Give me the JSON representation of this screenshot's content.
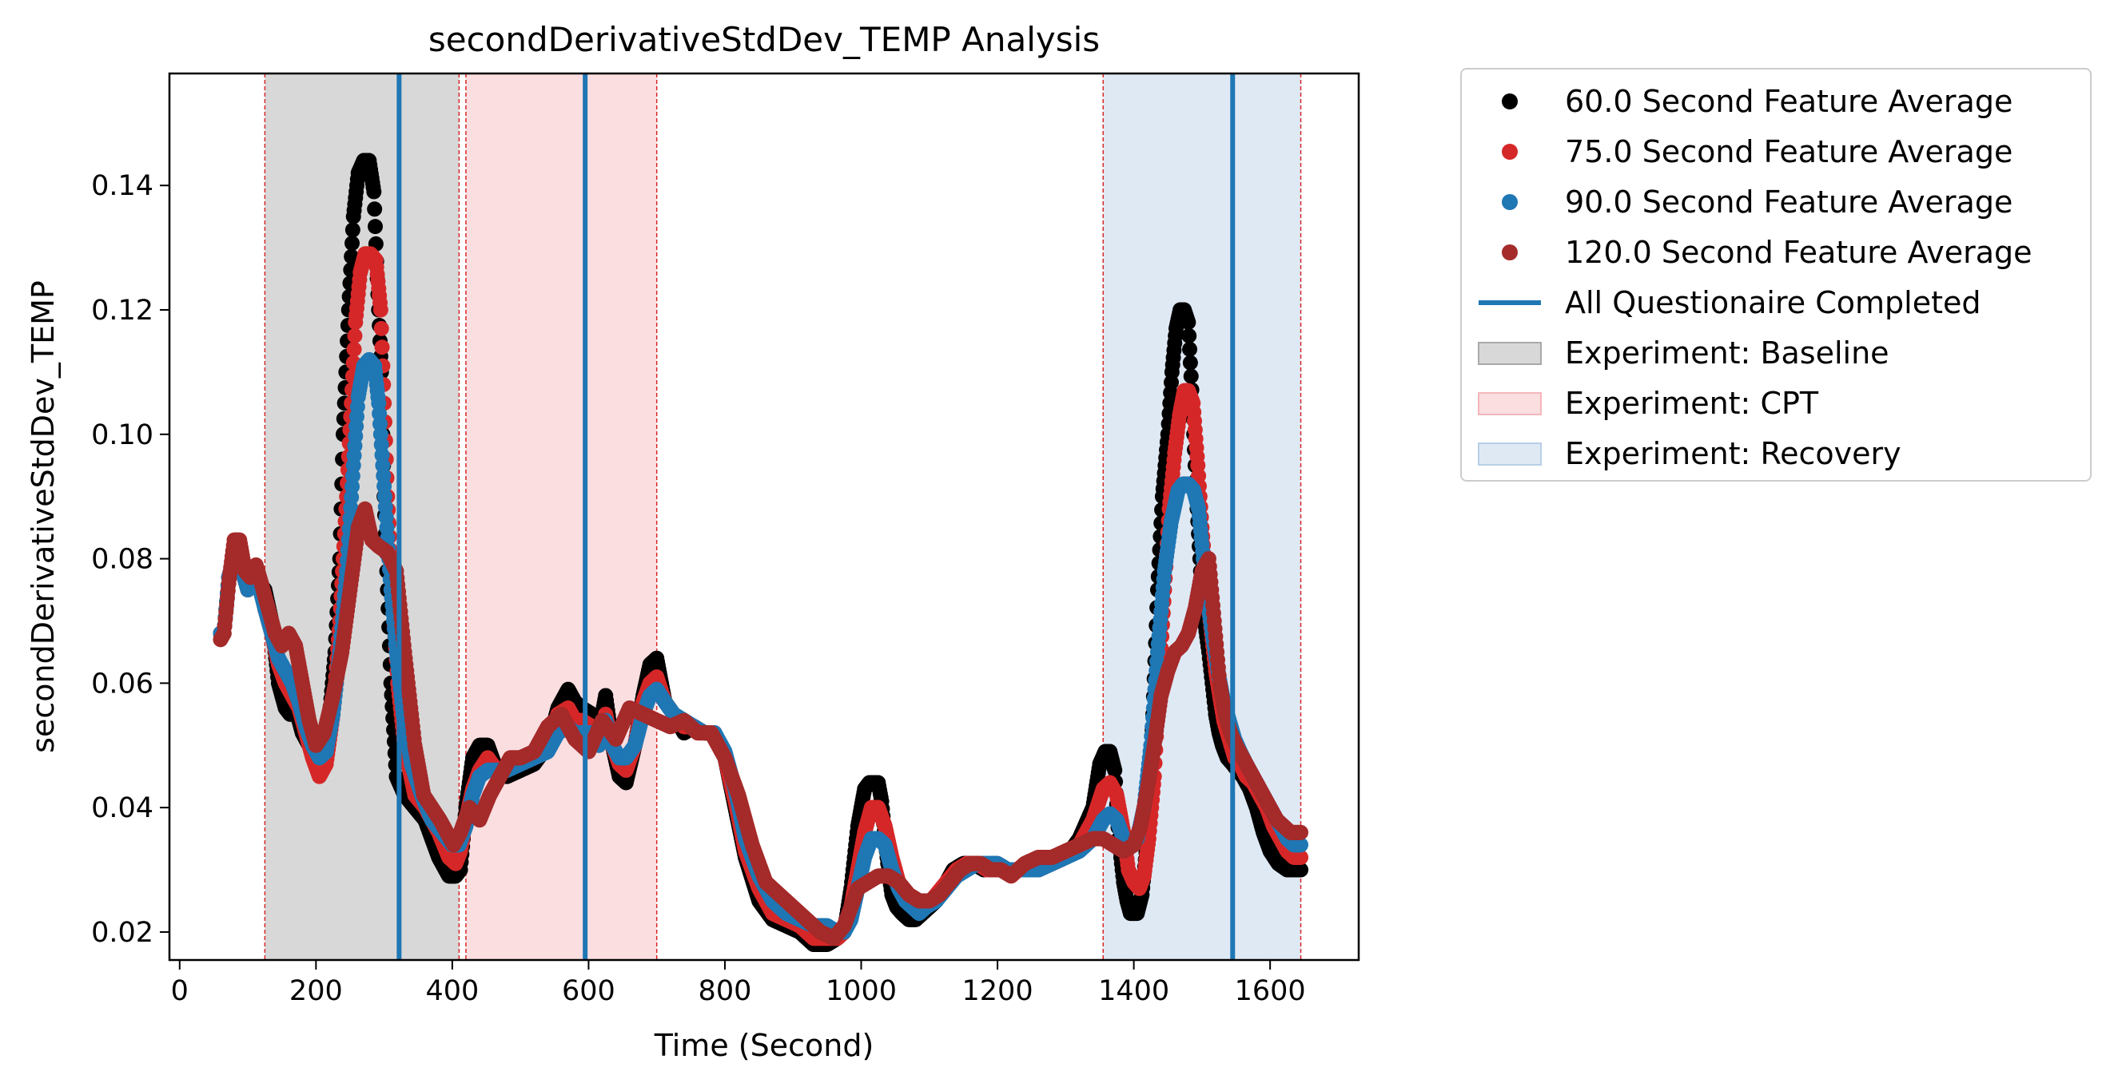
{
  "chart_data": {
    "type": "scatter",
    "title": "secondDerivativeStdDev_TEMP Analysis",
    "xlabel": "Time (Second)",
    "ylabel": "secondDerivativeStdDev_TEMP",
    "xlim": [
      -15,
      1730
    ],
    "ylim": [
      0.0155,
      0.158
    ],
    "xticks": [
      0,
      200,
      400,
      600,
      800,
      1000,
      1200,
      1400,
      1600
    ],
    "yticks": [
      0.02,
      0.04,
      0.06,
      0.08,
      0.1,
      0.12,
      0.14
    ],
    "ytick_labels": [
      "0.02",
      "0.04",
      "0.06",
      "0.08",
      "0.10",
      "0.12",
      "0.14"
    ],
    "grid": false,
    "legend_placement": "outside upper right",
    "bands": [
      {
        "name": "Experiment: Baseline",
        "x0": 125,
        "x1": 410,
        "color": "#a9a9a9"
      },
      {
        "name": "Experiment: CPT",
        "x0": 420,
        "x1": 700,
        "color": "#f4b6bb"
      },
      {
        "name": "Experiment: Recovery",
        "x0": 1355,
        "x1": 1645,
        "color": "#b8cfe6"
      }
    ],
    "band_edge_color": "#d62728",
    "completion_lines": {
      "name": "All Questionaire Completed",
      "x": [
        322,
        595,
        1545
      ],
      "color": "#1f77b4"
    },
    "series": [
      {
        "name": "60.0 Second Feature Average",
        "color": "#000000",
        "x": [
          60,
          65,
          72,
          82,
          92,
          100,
          110,
          118,
          125,
          135,
          145,
          155,
          162,
          170,
          180,
          190,
          200,
          210,
          220,
          228,
          235,
          240,
          248,
          255,
          262,
          270,
          278,
          285,
          290,
          296,
          300,
          305,
          310,
          318,
          330,
          345,
          360,
          380,
          395,
          405,
          412,
          420,
          430,
          440,
          452,
          465,
          480,
          500,
          520,
          540,
          555,
          570,
          580,
          590,
          605,
          615,
          625,
          635,
          645,
          655,
          668,
          680,
          690,
          700,
          712,
          725,
          740,
          755,
          770,
          785,
          800,
          815,
          830,
          850,
          870,
          890,
          910,
          930,
          950,
          965,
          975,
          985,
          995,
          1005,
          1012,
          1018,
          1025,
          1030,
          1035,
          1040,
          1045,
          1052,
          1060,
          1070,
          1080,
          1090,
          1100,
          1110,
          1120,
          1135,
          1150,
          1165,
          1180,
          1195,
          1210,
          1225,
          1240,
          1260,
          1280,
          1300,
          1320,
          1340,
          1350,
          1358,
          1365,
          1372,
          1378,
          1385,
          1390,
          1395,
          1400,
          1405,
          1412,
          1420,
          1428,
          1435,
          1442,
          1450,
          1456,
          1462,
          1468,
          1474,
          1480,
          1486,
          1492,
          1498,
          1504,
          1510,
          1515,
          1520,
          1525,
          1530,
          1537,
          1545,
          1552,
          1560,
          1570,
          1580,
          1590,
          1600,
          1612,
          1625,
          1635,
          1645
        ],
        "values": [
          0.068,
          0.068,
          0.077,
          0.081,
          0.078,
          0.075,
          0.078,
          0.076,
          0.075,
          0.07,
          0.06,
          0.056,
          0.055,
          0.056,
          0.052,
          0.05,
          0.048,
          0.05,
          0.055,
          0.065,
          0.08,
          0.1,
          0.12,
          0.135,
          0.142,
          0.144,
          0.144,
          0.139,
          0.125,
          0.11,
          0.09,
          0.075,
          0.06,
          0.045,
          0.042,
          0.04,
          0.038,
          0.032,
          0.029,
          0.029,
          0.03,
          0.04,
          0.048,
          0.05,
          0.05,
          0.046,
          0.045,
          0.046,
          0.047,
          0.05,
          0.056,
          0.059,
          0.057,
          0.056,
          0.055,
          0.052,
          0.058,
          0.05,
          0.045,
          0.044,
          0.05,
          0.058,
          0.063,
          0.064,
          0.057,
          0.055,
          0.052,
          0.053,
          0.052,
          0.052,
          0.048,
          0.04,
          0.032,
          0.025,
          0.022,
          0.021,
          0.02,
          0.018,
          0.018,
          0.019,
          0.02,
          0.027,
          0.037,
          0.043,
          0.044,
          0.044,
          0.044,
          0.041,
          0.035,
          0.03,
          0.026,
          0.024,
          0.023,
          0.022,
          0.022,
          0.023,
          0.024,
          0.025,
          0.027,
          0.03,
          0.031,
          0.031,
          0.03,
          0.031,
          0.03,
          0.03,
          0.03,
          0.03,
          0.031,
          0.032,
          0.035,
          0.04,
          0.047,
          0.049,
          0.049,
          0.046,
          0.035,
          0.028,
          0.025,
          0.023,
          0.023,
          0.023,
          0.026,
          0.035,
          0.055,
          0.075,
          0.09,
          0.1,
          0.11,
          0.117,
          0.12,
          0.12,
          0.118,
          0.105,
          0.09,
          0.078,
          0.07,
          0.065,
          0.06,
          0.055,
          0.052,
          0.05,
          0.048,
          0.047,
          0.046,
          0.045,
          0.043,
          0.04,
          0.036,
          0.033,
          0.031,
          0.03,
          0.03,
          0.03
        ]
      },
      {
        "name": "75.0 Second Feature Average",
        "color": "#d62728",
        "x": [
          60,
          65,
          72,
          82,
          92,
          100,
          110,
          118,
          125,
          135,
          145,
          155,
          165,
          175,
          185,
          195,
          205,
          215,
          225,
          235,
          245,
          252,
          258,
          265,
          272,
          280,
          288,
          295,
          300,
          305,
          312,
          320,
          330,
          345,
          360,
          380,
          395,
          405,
          412,
          420,
          430,
          440,
          452,
          465,
          480,
          500,
          520,
          540,
          555,
          570,
          580,
          590,
          605,
          615,
          625,
          635,
          645,
          655,
          668,
          680,
          690,
          700,
          712,
          725,
          740,
          755,
          770,
          785,
          800,
          815,
          830,
          850,
          870,
          890,
          910,
          930,
          950,
          965,
          975,
          985,
          995,
          1005,
          1015,
          1025,
          1035,
          1045,
          1055,
          1065,
          1075,
          1085,
          1095,
          1110,
          1125,
          1140,
          1155,
          1170,
          1185,
          1200,
          1215,
          1230,
          1245,
          1260,
          1280,
          1300,
          1320,
          1340,
          1355,
          1365,
          1375,
          1385,
          1392,
          1400,
          1408,
          1415,
          1422,
          1430,
          1437,
          1445,
          1452,
          1460,
          1467,
          1474,
          1480,
          1487,
          1494,
          1500,
          1507,
          1514,
          1520,
          1526,
          1532,
          1540,
          1548,
          1556,
          1565,
          1575,
          1585,
          1595,
          1605,
          1615,
          1625,
          1635,
          1645
        ],
        "values": [
          0.068,
          0.068,
          0.077,
          0.081,
          0.078,
          0.075,
          0.078,
          0.076,
          0.072,
          0.068,
          0.063,
          0.06,
          0.058,
          0.056,
          0.052,
          0.048,
          0.045,
          0.047,
          0.055,
          0.07,
          0.09,
          0.105,
          0.118,
          0.126,
          0.129,
          0.129,
          0.128,
          0.12,
          0.105,
          0.09,
          0.075,
          0.06,
          0.05,
          0.042,
          0.04,
          0.036,
          0.032,
          0.031,
          0.033,
          0.038,
          0.043,
          0.046,
          0.048,
          0.046,
          0.046,
          0.047,
          0.048,
          0.05,
          0.055,
          0.056,
          0.054,
          0.054,
          0.053,
          0.05,
          0.055,
          0.05,
          0.047,
          0.046,
          0.05,
          0.057,
          0.06,
          0.061,
          0.057,
          0.055,
          0.053,
          0.053,
          0.052,
          0.052,
          0.048,
          0.041,
          0.033,
          0.027,
          0.023,
          0.022,
          0.021,
          0.019,
          0.019,
          0.019,
          0.02,
          0.024,
          0.03,
          0.036,
          0.04,
          0.04,
          0.037,
          0.032,
          0.028,
          0.026,
          0.024,
          0.024,
          0.024,
          0.026,
          0.028,
          0.03,
          0.031,
          0.031,
          0.03,
          0.031,
          0.03,
          0.03,
          0.03,
          0.03,
          0.031,
          0.032,
          0.034,
          0.038,
          0.043,
          0.044,
          0.042,
          0.036,
          0.03,
          0.028,
          0.027,
          0.029,
          0.035,
          0.045,
          0.06,
          0.075,
          0.088,
          0.097,
          0.103,
          0.107,
          0.107,
          0.105,
          0.095,
          0.085,
          0.075,
          0.068,
          0.062,
          0.058,
          0.054,
          0.051,
          0.048,
          0.047,
          0.045,
          0.044,
          0.042,
          0.04,
          0.037,
          0.035,
          0.033,
          0.032,
          0.032
        ]
      },
      {
        "name": "90.0 Second Feature Average",
        "color": "#1f77b4",
        "x": [
          60,
          65,
          72,
          82,
          92,
          100,
          110,
          118,
          125,
          135,
          145,
          155,
          165,
          175,
          185,
          195,
          205,
          215,
          225,
          235,
          245,
          255,
          262,
          270,
          278,
          286,
          292,
          298,
          304,
          310,
          318,
          328,
          340,
          355,
          370,
          385,
          400,
          410,
          420,
          430,
          440,
          452,
          465,
          480,
          500,
          520,
          540,
          555,
          570,
          580,
          590,
          605,
          615,
          625,
          635,
          645,
          655,
          668,
          680,
          690,
          700,
          712,
          725,
          740,
          755,
          770,
          785,
          800,
          815,
          830,
          850,
          870,
          890,
          910,
          930,
          950,
          965,
          975,
          985,
          995,
          1005,
          1015,
          1025,
          1035,
          1045,
          1055,
          1065,
          1075,
          1085,
          1095,
          1110,
          1125,
          1140,
          1155,
          1170,
          1185,
          1200,
          1215,
          1230,
          1245,
          1260,
          1280,
          1300,
          1320,
          1340,
          1355,
          1365,
          1375,
          1385,
          1395,
          1405,
          1415,
          1425,
          1435,
          1445,
          1455,
          1465,
          1472,
          1480,
          1488,
          1495,
          1502,
          1510,
          1518,
          1525,
          1532,
          1540,
          1548,
          1556,
          1565,
          1575,
          1585,
          1595,
          1605,
          1615,
          1625,
          1635,
          1645
        ],
        "values": [
          0.068,
          0.068,
          0.077,
          0.081,
          0.078,
          0.075,
          0.078,
          0.075,
          0.072,
          0.068,
          0.064,
          0.062,
          0.06,
          0.057,
          0.053,
          0.05,
          0.048,
          0.049,
          0.055,
          0.065,
          0.078,
          0.095,
          0.106,
          0.111,
          0.112,
          0.111,
          0.105,
          0.095,
          0.085,
          0.075,
          0.065,
          0.055,
          0.047,
          0.042,
          0.038,
          0.036,
          0.034,
          0.034,
          0.037,
          0.042,
          0.045,
          0.046,
          0.046,
          0.046,
          0.047,
          0.048,
          0.049,
          0.052,
          0.053,
          0.052,
          0.052,
          0.052,
          0.05,
          0.054,
          0.05,
          0.048,
          0.048,
          0.05,
          0.055,
          0.058,
          0.059,
          0.057,
          0.055,
          0.054,
          0.053,
          0.052,
          0.052,
          0.049,
          0.043,
          0.035,
          0.029,
          0.025,
          0.023,
          0.022,
          0.021,
          0.021,
          0.02,
          0.02,
          0.022,
          0.027,
          0.032,
          0.035,
          0.035,
          0.034,
          0.03,
          0.027,
          0.025,
          0.024,
          0.023,
          0.024,
          0.025,
          0.027,
          0.029,
          0.03,
          0.031,
          0.031,
          0.031,
          0.03,
          0.03,
          0.03,
          0.03,
          0.031,
          0.032,
          0.033,
          0.035,
          0.038,
          0.039,
          0.038,
          0.035,
          0.034,
          0.035,
          0.04,
          0.05,
          0.065,
          0.078,
          0.086,
          0.091,
          0.092,
          0.092,
          0.091,
          0.088,
          0.08,
          0.072,
          0.066,
          0.061,
          0.057,
          0.054,
          0.051,
          0.049,
          0.047,
          0.045,
          0.043,
          0.041,
          0.039,
          0.037,
          0.035,
          0.034,
          0.034
        ]
      },
      {
        "name": "120.0 Second Feature Average",
        "color": "#a52a2a",
        "x": [
          60,
          65,
          72,
          80,
          88,
          96,
          104,
          112,
          120,
          130,
          140,
          150,
          160,
          170,
          180,
          190,
          200,
          212,
          225,
          238,
          250,
          262,
          272,
          282,
          292,
          305,
          318,
          330,
          345,
          358,
          370,
          382,
          392,
          402,
          412,
          425,
          440,
          455,
          470,
          485,
          500,
          520,
          540,
          560,
          580,
          600,
          620,
          640,
          660,
          680,
          700,
          720,
          740,
          760,
          780,
          800,
          820,
          840,
          860,
          880,
          900,
          920,
          940,
          960,
          975,
          985,
          995,
          1010,
          1025,
          1040,
          1055,
          1070,
          1085,
          1100,
          1115,
          1130,
          1145,
          1160,
          1175,
          1190,
          1205,
          1220,
          1240,
          1260,
          1280,
          1300,
          1320,
          1340,
          1355,
          1370,
          1385,
          1400,
          1410,
          1420,
          1430,
          1440,
          1450,
          1460,
          1470,
          1480,
          1490,
          1500,
          1510,
          1518,
          1526,
          1534,
          1542,
          1550,
          1560,
          1570,
          1580,
          1590,
          1600,
          1610,
          1620,
          1630,
          1640,
          1645
        ],
        "values": [
          0.067,
          0.068,
          0.076,
          0.083,
          0.083,
          0.078,
          0.077,
          0.079,
          0.076,
          0.072,
          0.068,
          0.066,
          0.068,
          0.066,
          0.06,
          0.054,
          0.05,
          0.052,
          0.058,
          0.065,
          0.075,
          0.085,
          0.088,
          0.083,
          0.082,
          0.081,
          0.078,
          0.065,
          0.05,
          0.042,
          0.04,
          0.038,
          0.036,
          0.034,
          0.036,
          0.04,
          0.038,
          0.042,
          0.045,
          0.048,
          0.048,
          0.049,
          0.053,
          0.055,
          0.051,
          0.049,
          0.054,
          0.051,
          0.056,
          0.055,
          0.054,
          0.053,
          0.054,
          0.052,
          0.052,
          0.048,
          0.042,
          0.034,
          0.028,
          0.026,
          0.024,
          0.022,
          0.02,
          0.019,
          0.021,
          0.024,
          0.027,
          0.028,
          0.029,
          0.029,
          0.028,
          0.026,
          0.025,
          0.025,
          0.026,
          0.028,
          0.03,
          0.031,
          0.031,
          0.03,
          0.03,
          0.029,
          0.031,
          0.032,
          0.032,
          0.033,
          0.034,
          0.035,
          0.035,
          0.034,
          0.033,
          0.034,
          0.037,
          0.043,
          0.05,
          0.058,
          0.062,
          0.065,
          0.066,
          0.068,
          0.072,
          0.078,
          0.08,
          0.07,
          0.06,
          0.055,
          0.052,
          0.05,
          0.048,
          0.046,
          0.044,
          0.042,
          0.04,
          0.038,
          0.037,
          0.036,
          0.036,
          0.036
        ]
      }
    ]
  }
}
